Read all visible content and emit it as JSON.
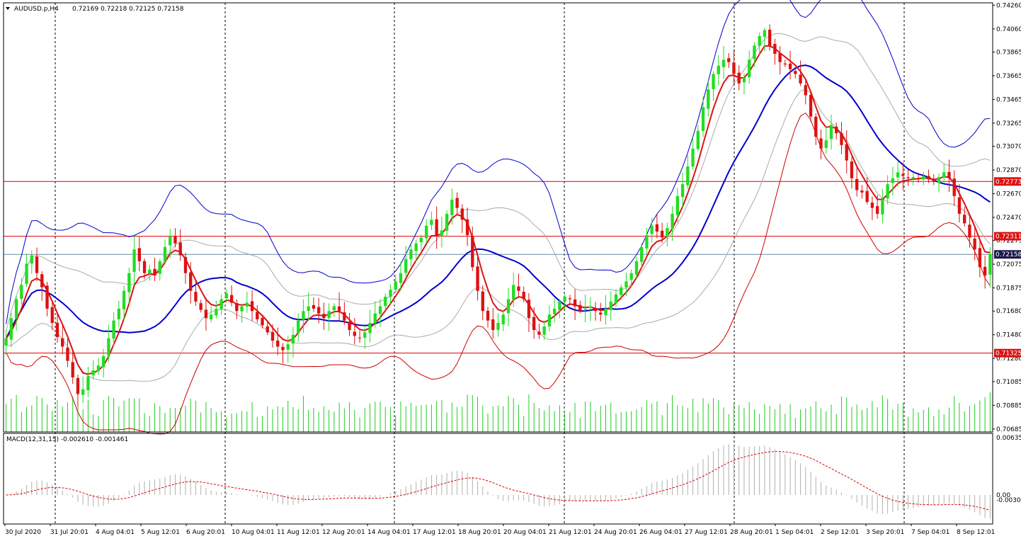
{
  "header": {
    "symbol": "AUDUSD.p,H4",
    "ohlc": "0.72169 0.72218 0.72125 0.72158",
    "macd": "MACD(12,31,15) -0.002610 -0.001461"
  },
  "colors": {
    "bull": "#22dd22",
    "bear": "#dd1111",
    "ema_fast": "#dd1111",
    "ma_mid": "#0000cc",
    "band_outer_up": "#0000cc",
    "band_outer_dn": "#cc0000",
    "band_inner": "#aaaaaa",
    "volume": "#22cc22",
    "level": "#dd0000",
    "price_line": "#6a8aa4",
    "macd_hist": "#b0b0b0",
    "macd_signal": "#dd0000"
  },
  "chart_data": {
    "type": "candlestick",
    "symbol": "AUDUSD.p,H4",
    "y_ticks": [
      "0.74260",
      "0.74060",
      "0.73865",
      "0.73665",
      "0.73465",
      "0.73265",
      "0.73070",
      "0.72870",
      "0.72670",
      "0.72470",
      "0.72275",
      "0.72075",
      "0.71875",
      "0.71680",
      "0.71480",
      "0.71280",
      "0.71085",
      "0.70885",
      "0.70685"
    ],
    "x_ticks": [
      "30 Jul 2020",
      "31 Jul 20:01",
      "4 Aug 04:01",
      "5 Aug 12:01",
      "6 Aug 20:01",
      "10 Aug 04:01",
      "11 Aug 12:01",
      "12 Aug 20:01",
      "14 Aug 04:01",
      "17 Aug 12:01",
      "18 Aug 20:01",
      "20 Aug 04:01",
      "21 Aug 12:01",
      "24 Aug 20:01",
      "26 Aug 04:01",
      "27 Aug 12:01",
      "28 Aug 20:01",
      "1 Sep 04:01",
      "2 Sep 12:01",
      "3 Sep 20:01",
      "7 Sep 04:01",
      "8 Sep 12:01"
    ],
    "ylim": [
      0.7066,
      0.7428
    ],
    "horizontal_levels": [
      {
        "label": "0.72773",
        "value": 0.72773
      },
      {
        "label": "0.72311",
        "value": 0.72311
      },
      {
        "label": "0.71325",
        "value": 0.71325
      }
    ],
    "current_price": {
      "label": "0.72158",
      "value": 0.72158
    },
    "closes": [
      0.7145,
      0.7162,
      0.7178,
      0.719,
      0.7208,
      0.7215,
      0.72,
      0.7188,
      0.717,
      0.7158,
      0.7146,
      0.7138,
      0.7126,
      0.7112,
      0.7098,
      0.7102,
      0.7113,
      0.7118,
      0.7122,
      0.713,
      0.7145,
      0.716,
      0.717,
      0.7185,
      0.72,
      0.722,
      0.721,
      0.72,
      0.7203,
      0.7198,
      0.721,
      0.7222,
      0.7231,
      0.7225,
      0.7215,
      0.72,
      0.7185,
      0.7176,
      0.7169,
      0.7162,
      0.7165,
      0.717,
      0.7178,
      0.7183,
      0.7175,
      0.7168,
      0.7172,
      0.7175,
      0.7168,
      0.7161,
      0.7156,
      0.715,
      0.7143,
      0.7138,
      0.7135,
      0.714,
      0.7148,
      0.716,
      0.7168,
      0.7172,
      0.717,
      0.7166,
      0.7162,
      0.7168,
      0.7172,
      0.7168,
      0.716,
      0.7152,
      0.7147,
      0.7145,
      0.715,
      0.7158,
      0.7166,
      0.7172,
      0.718,
      0.7186,
      0.7193,
      0.72,
      0.7212,
      0.722,
      0.7225,
      0.723,
      0.724,
      0.7245,
      0.7232,
      0.7236,
      0.725,
      0.7262,
      0.7255,
      0.7245,
      0.7232,
      0.7205,
      0.7185,
      0.7168,
      0.716,
      0.7152,
      0.7158,
      0.7165,
      0.7178,
      0.719,
      0.7185,
      0.7178,
      0.7162,
      0.7152,
      0.7148,
      0.7155,
      0.7165,
      0.717,
      0.7176,
      0.718,
      0.7178,
      0.7172,
      0.7168,
      0.717,
      0.7172,
      0.7168,
      0.7165,
      0.717,
      0.7176,
      0.7182,
      0.7188,
      0.7193,
      0.72,
      0.721,
      0.7222,
      0.7232,
      0.724,
      0.7235,
      0.723,
      0.7238,
      0.725,
      0.7265,
      0.7275,
      0.729,
      0.7305,
      0.732,
      0.734,
      0.7355,
      0.7368,
      0.7375,
      0.738,
      0.7378,
      0.7368,
      0.736,
      0.7365,
      0.738,
      0.7392,
      0.74,
      0.7405,
      0.7392,
      0.7385,
      0.7378,
      0.7376,
      0.7372,
      0.7368,
      0.736,
      0.735,
      0.7332,
      0.7315,
      0.7305,
      0.7312,
      0.7325,
      0.7318,
      0.7308,
      0.7295,
      0.728,
      0.727,
      0.7268,
      0.726,
      0.7255,
      0.725,
      0.7262,
      0.7275,
      0.728,
      0.7285,
      0.7282,
      0.728,
      0.7281,
      0.728,
      0.7282,
      0.7279,
      0.7277,
      0.7281,
      0.7285,
      0.728,
      0.7265,
      0.725,
      0.7242,
      0.723,
      0.722,
      0.7205,
      0.7198,
      0.7216
    ]
  }
}
